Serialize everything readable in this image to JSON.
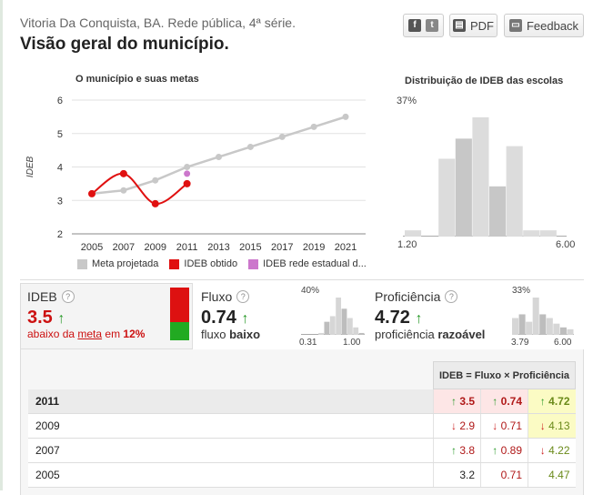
{
  "header": {
    "subtitle": "Vitoria Da Conquista, BA. Rede pública, 4ª série.",
    "title": "Visão geral do município."
  },
  "actions": {
    "share_icon_f": "f",
    "share_icon_t": "t",
    "pdf_label": "PDF",
    "feedback_label": "Feedback"
  },
  "chart_data": [
    {
      "type": "line",
      "title": "O município e suas metas",
      "ylabel": "IDEB",
      "x": [
        2005,
        2007,
        2009,
        2011,
        2013,
        2015,
        2017,
        2019,
        2021
      ],
      "ylim": [
        2,
        6
      ],
      "yticks": [
        2,
        3,
        4,
        5,
        6
      ],
      "series": [
        {
          "name": "Meta projetada",
          "color": "#c8c8c8",
          "x": [
            2005,
            2007,
            2009,
            2011,
            2013,
            2015,
            2017,
            2019,
            2021
          ],
          "values": [
            3.2,
            3.3,
            3.6,
            4.0,
            4.3,
            4.6,
            4.9,
            5.2,
            5.5
          ]
        },
        {
          "name": "IDEB obtido",
          "color": "#e01010",
          "x": [
            2005,
            2007,
            2009,
            2011
          ],
          "values": [
            3.2,
            3.8,
            2.9,
            3.5
          ]
        },
        {
          "name": "IDEB rede estadual d...",
          "color": "#cc77cc",
          "x": [
            2011
          ],
          "values": [
            3.8
          ]
        }
      ],
      "grid": true
    },
    {
      "type": "bar",
      "title": "Distribuição de IDEB das escolas",
      "max_label": "37%",
      "xmin_label": "1.20",
      "xmax_label": "6.00",
      "values": [
        0.05,
        0,
        0.62,
        0.78,
        0.95,
        0.4,
        0.72,
        0.05,
        0.05,
        0
      ],
      "highlight": [
        3,
        5
      ]
    }
  ],
  "legend": [
    {
      "label": "Meta projetada",
      "color": "#c8c8c8"
    },
    {
      "label": "IDEB obtido",
      "color": "#e01010"
    },
    {
      "label": "IDEB rede estadual d...",
      "color": "#cc77cc"
    }
  ],
  "ideb": {
    "label": "IDEB",
    "value": "3.5",
    "arrow": "↑",
    "desc_pre": "abaixo da ",
    "desc_link": "meta",
    "desc_mid": " em ",
    "desc_pct": "12%",
    "status_colors": [
      "#dd1111",
      "#dd1111",
      "#22aa22"
    ]
  },
  "fluxo": {
    "label": "Fluxo",
    "value": "0.74",
    "arrow": "↑",
    "desc_pre": "fluxo ",
    "desc_bold": "baixo",
    "hist_max": "40%",
    "hist_min": "0.31",
    "hist_maxx": "1.00",
    "hist": [
      0,
      0,
      0,
      0.05,
      0.35,
      0.5,
      1.0,
      0.7,
      0.45,
      0.2,
      0.05
    ]
  },
  "proficiencia": {
    "label": "Proficiência",
    "value": "4.72",
    "arrow": "↑",
    "desc_pre": "proficiência ",
    "desc_bold": "razoável",
    "hist_max": "33%",
    "hist_min": "3.79",
    "hist_maxx": "6.00",
    "hist": [
      0.45,
      0.55,
      0.35,
      1.0,
      0.55,
      0.45,
      0.3,
      0.2,
      0.15
    ]
  },
  "table": {
    "header": "IDEB = Fluxo × Proficiência",
    "rows": [
      {
        "year": "2011",
        "ideb": "3.5",
        "ideb_dir": "↑",
        "fluxo": "0.74",
        "fluxo_dir": "↑",
        "prof": "4.72",
        "prof_dir": "↑"
      },
      {
        "year": "2009",
        "ideb": "2.9",
        "ideb_dir": "↓",
        "fluxo": "0.71",
        "fluxo_dir": "↓",
        "prof": "4.13",
        "prof_dir": "↓"
      },
      {
        "year": "2007",
        "ideb": "3.8",
        "ideb_dir": "↑",
        "fluxo": "0.89",
        "fluxo_dir": "↑",
        "prof": "4.22",
        "prof_dir": "↓"
      },
      {
        "year": "2005",
        "ideb": "3.2",
        "ideb_dir": "",
        "fluxo": "0.71",
        "fluxo_dir": "",
        "prof": "4.47",
        "prof_dir": ""
      }
    ],
    "colors": {
      "ideb_text": "#b01818",
      "prof_text": "#6a8a1a",
      "ideb_hl": "#fde6e6",
      "fluxo_hl": "#fde6e6",
      "prof_hl": "#fbfbc4"
    }
  }
}
